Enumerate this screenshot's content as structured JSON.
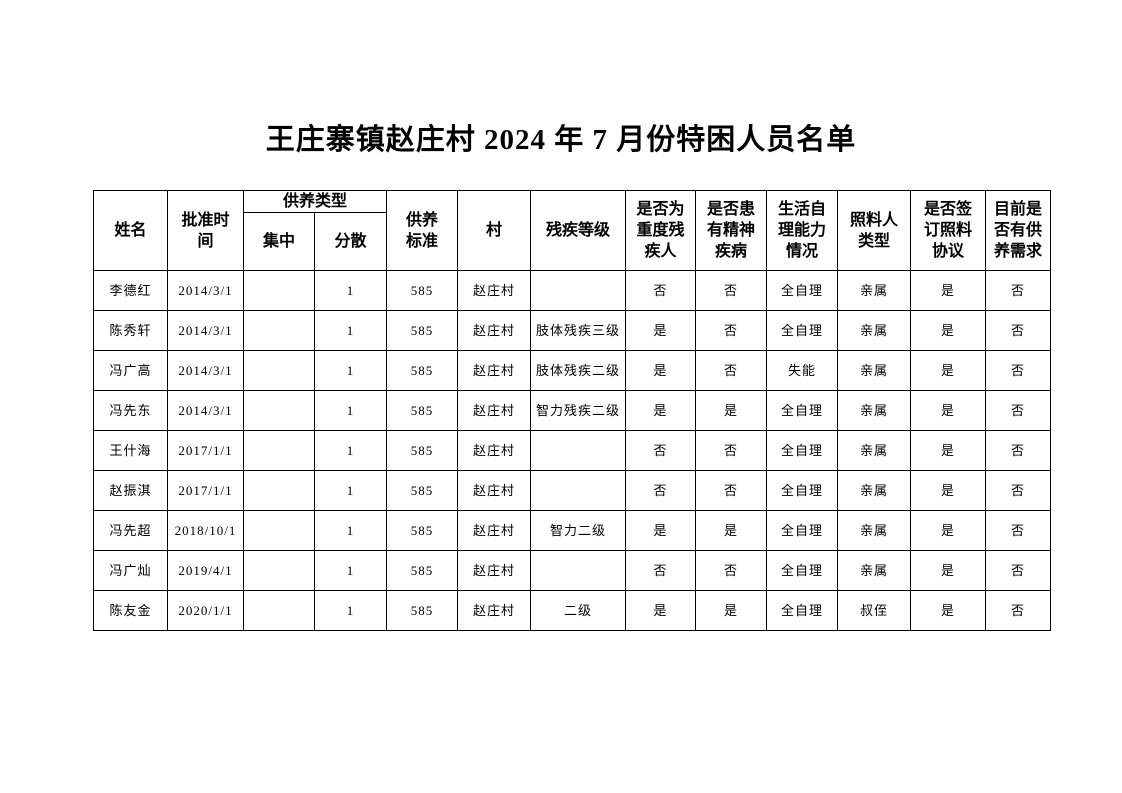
{
  "page": {
    "title": "王庄寨镇赵庄村 2024 年 7 月份特困人员名单"
  },
  "table": {
    "header": {
      "name": "姓名",
      "approval_time": "批准时\n间",
      "support_type": "供养类型",
      "centralized": "集中",
      "dispersed": "分散",
      "support_standard": "供养\n标准",
      "village": "村",
      "disability_level": "残疾等级",
      "severe_disability": "是否为\n重度残\n疾人",
      "mental_illness": "是否患\n有精神\n疾病",
      "self_care": "生活自\n理能力\n情况",
      "caretaker_type": "照料人\n类型",
      "care_agreement": "是否签\n订照料\n协议",
      "support_need": "目前是\n否有供\n养需求"
    },
    "rows": [
      [
        "李德红",
        "2014/3/1",
        "",
        "1",
        "585",
        "赵庄村",
        "",
        "否",
        "否",
        "全自理",
        "亲属",
        "是",
        "否"
      ],
      [
        "陈秀轩",
        "2014/3/1",
        "",
        "1",
        "585",
        "赵庄村",
        "肢体残疾三级",
        "是",
        "否",
        "全自理",
        "亲属",
        "是",
        "否"
      ],
      [
        "冯广高",
        "2014/3/1",
        "",
        "1",
        "585",
        "赵庄村",
        "肢体残疾二级",
        "是",
        "否",
        "失能",
        "亲属",
        "是",
        "否"
      ],
      [
        "冯先东",
        "2014/3/1",
        "",
        "1",
        "585",
        "赵庄村",
        "智力残疾二级",
        "是",
        "是",
        "全自理",
        "亲属",
        "是",
        "否"
      ],
      [
        "王什海",
        "2017/1/1",
        "",
        "1",
        "585",
        "赵庄村",
        "",
        "否",
        "否",
        "全自理",
        "亲属",
        "是",
        "否"
      ],
      [
        "赵振淇",
        "2017/1/1",
        "",
        "1",
        "585",
        "赵庄村",
        "",
        "否",
        "否",
        "全自理",
        "亲属",
        "是",
        "否"
      ],
      [
        "冯先超",
        "2018/10/1",
        "",
        "1",
        "585",
        "赵庄村",
        "智力二级",
        "是",
        "是",
        "全自理",
        "亲属",
        "是",
        "否"
      ],
      [
        "冯广灿",
        "2019/4/1",
        "",
        "1",
        "585",
        "赵庄村",
        "",
        "否",
        "否",
        "全自理",
        "亲属",
        "是",
        "否"
      ],
      [
        "陈友金",
        "2020/1/1",
        "",
        "1",
        "585",
        "赵庄村",
        "二级",
        "是",
        "是",
        "全自理",
        "叔侄",
        "是",
        "否"
      ]
    ]
  }
}
